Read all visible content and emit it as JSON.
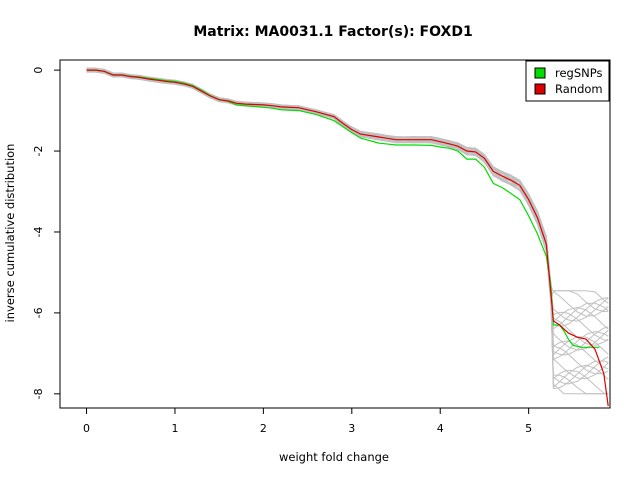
{
  "chart_data": {
    "type": "line",
    "title": "Matrix: MA0031.1 Factor(s): FOXD1",
    "xlabel": "weight fold change",
    "ylabel": "inverse cumulative distribution",
    "xlim": [
      -0.3,
      5.92
    ],
    "ylim": [
      -8.35,
      0.25
    ],
    "xticks": [
      0,
      1,
      2,
      3,
      4,
      5
    ],
    "yticks": [
      0,
      -2,
      -4,
      -6,
      -8
    ],
    "grid": false,
    "legend_position": "top-right",
    "series": [
      {
        "name": "regSNPs",
        "color": "#00dd00",
        "points": [
          [
            0,
            0
          ],
          [
            0.1,
            0
          ],
          [
            0.2,
            -0.03
          ],
          [
            0.3,
            -0.12
          ],
          [
            0.4,
            -0.12
          ],
          [
            0.5,
            -0.15
          ],
          [
            0.6,
            -0.17
          ],
          [
            0.7,
            -0.2
          ],
          [
            0.8,
            -0.23
          ],
          [
            0.9,
            -0.26
          ],
          [
            1.0,
            -0.28
          ],
          [
            1.1,
            -0.32
          ],
          [
            1.2,
            -0.38
          ],
          [
            1.3,
            -0.5
          ],
          [
            1.4,
            -0.63
          ],
          [
            1.5,
            -0.73
          ],
          [
            1.6,
            -0.77
          ],
          [
            1.7,
            -0.86
          ],
          [
            1.8,
            -0.88
          ],
          [
            1.9,
            -0.9
          ],
          [
            2.0,
            -0.92
          ],
          [
            2.1,
            -0.94
          ],
          [
            2.2,
            -0.98
          ],
          [
            2.4,
            -1.0
          ],
          [
            2.6,
            -1.1
          ],
          [
            2.8,
            -1.25
          ],
          [
            2.9,
            -1.4
          ],
          [
            3.0,
            -1.55
          ],
          [
            3.1,
            -1.68
          ],
          [
            3.3,
            -1.8
          ],
          [
            3.5,
            -1.85
          ],
          [
            3.7,
            -1.85
          ],
          [
            3.9,
            -1.86
          ],
          [
            4.0,
            -1.9
          ],
          [
            4.1,
            -1.93
          ],
          [
            4.2,
            -2.0
          ],
          [
            4.3,
            -2.2
          ],
          [
            4.4,
            -2.2
          ],
          [
            4.5,
            -2.4
          ],
          [
            4.6,
            -2.8
          ],
          [
            4.7,
            -2.9
          ],
          [
            4.8,
            -3.05
          ],
          [
            4.9,
            -3.2
          ],
          [
            5.0,
            -3.6
          ],
          [
            5.1,
            -4.05
          ],
          [
            5.2,
            -4.6
          ],
          [
            5.25,
            -5.3
          ],
          [
            5.28,
            -6.3
          ],
          [
            5.35,
            -6.3
          ],
          [
            5.4,
            -6.45
          ],
          [
            5.45,
            -6.65
          ],
          [
            5.5,
            -6.8
          ],
          [
            5.6,
            -6.85
          ],
          [
            5.7,
            -6.85
          ],
          [
            5.8,
            -6.85
          ]
        ]
      },
      {
        "name": "Random",
        "color": "#dd0000",
        "points": [
          [
            0,
            0
          ],
          [
            0.1,
            0
          ],
          [
            0.2,
            -0.03
          ],
          [
            0.3,
            -0.12
          ],
          [
            0.4,
            -0.12
          ],
          [
            0.5,
            -0.16
          ],
          [
            0.6,
            -0.18
          ],
          [
            0.7,
            -0.22
          ],
          [
            0.8,
            -0.25
          ],
          [
            0.9,
            -0.28
          ],
          [
            1.0,
            -0.3
          ],
          [
            1.1,
            -0.34
          ],
          [
            1.2,
            -0.4
          ],
          [
            1.3,
            -0.52
          ],
          [
            1.4,
            -0.64
          ],
          [
            1.5,
            -0.73
          ],
          [
            1.6,
            -0.76
          ],
          [
            1.7,
            -0.82
          ],
          [
            1.8,
            -0.84
          ],
          [
            1.9,
            -0.85
          ],
          [
            2.0,
            -0.86
          ],
          [
            2.1,
            -0.88
          ],
          [
            2.2,
            -0.91
          ],
          [
            2.4,
            -0.93
          ],
          [
            2.6,
            -1.03
          ],
          [
            2.8,
            -1.15
          ],
          [
            2.9,
            -1.32
          ],
          [
            3.0,
            -1.47
          ],
          [
            3.1,
            -1.58
          ],
          [
            3.3,
            -1.65
          ],
          [
            3.5,
            -1.72
          ],
          [
            3.7,
            -1.72
          ],
          [
            3.9,
            -1.72
          ],
          [
            4.0,
            -1.77
          ],
          [
            4.1,
            -1.82
          ],
          [
            4.2,
            -1.88
          ],
          [
            4.3,
            -2.0
          ],
          [
            4.4,
            -2.02
          ],
          [
            4.5,
            -2.18
          ],
          [
            4.6,
            -2.5
          ],
          [
            4.7,
            -2.62
          ],
          [
            4.8,
            -2.72
          ],
          [
            4.9,
            -2.85
          ],
          [
            5.0,
            -3.2
          ],
          [
            5.1,
            -3.65
          ],
          [
            5.2,
            -4.3
          ],
          [
            5.25,
            -5.5
          ],
          [
            5.28,
            -6.2
          ],
          [
            5.35,
            -6.3
          ],
          [
            5.4,
            -6.4
          ],
          [
            5.45,
            -6.5
          ],
          [
            5.55,
            -6.6
          ],
          [
            5.65,
            -6.65
          ],
          [
            5.75,
            -6.9
          ],
          [
            5.85,
            -7.5
          ],
          [
            5.9,
            -8.3
          ]
        ]
      }
    ]
  }
}
